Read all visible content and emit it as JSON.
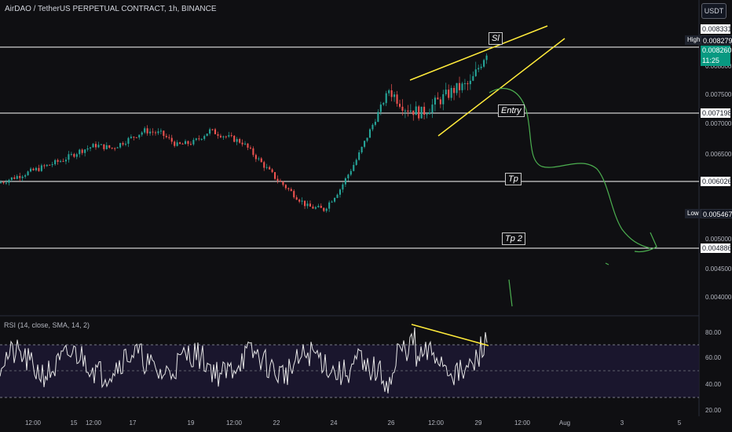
{
  "header": {
    "symbol_title": "AirDAO / TetherUS PERPETUAL CONTRACT, 1h, BINANCE",
    "currency_button": "USDT"
  },
  "price_axis": {
    "labels": [
      "0.008000",
      "0.007500",
      "0.007000",
      "0.006500",
      "0.005000",
      "0.004500",
      "0.004000"
    ]
  },
  "price_tags": {
    "top_line": "0.008331",
    "high_label": "High",
    "high_value": "0.008279",
    "current_price": "0.008260",
    "countdown": "11:25",
    "entry_line": "0.007198",
    "tp_line": "0.006026",
    "low_label": "Low",
    "low_value": "0.005467",
    "tp2_line": "0.004886"
  },
  "annotations": {
    "sl": "Sl",
    "entry": "Entry",
    "tp": "Tp",
    "tp2": "Tp 2"
  },
  "rsi": {
    "label": "RSI (14, close, SMA, 14, 2)",
    "axis_labels": [
      "80.00",
      "60.00",
      "40.00",
      "20.00"
    ]
  },
  "time_axis": {
    "labels": [
      "12:00",
      "15",
      "12:00",
      "17",
      "19",
      "12:00",
      "22",
      "24",
      "26",
      "12:00",
      "29",
      "12:00",
      "Aug",
      "3",
      "5"
    ]
  },
  "colors": {
    "background": "#0f0f12",
    "up_candle": "#26a69a",
    "down_candle": "#ef5350",
    "trendline": "#ffeb3b",
    "projection": "#4caf50",
    "horizontal_line": "#ffffff",
    "current_price_tag": "#089981"
  },
  "chart_data": {
    "type": "candlestick",
    "title": "AirDAO / TetherUS PERPETUAL CONTRACT, 1h, BINANCE",
    "price_range": [
      0.0038,
      0.0085
    ],
    "horizontal_levels": [
      0.008331,
      0.007198,
      0.006026,
      0.004886
    ],
    "high": 0.008279,
    "low": 0.005467,
    "last": 0.00826,
    "approx_close_path": [
      [
        0,
        0.006
      ],
      [
        10,
        0.0061
      ],
      [
        20,
        0.0062
      ],
      [
        30,
        0.0063
      ],
      [
        40,
        0.0064
      ],
      [
        50,
        0.00655
      ],
      [
        60,
        0.00665
      ],
      [
        70,
        0.0066
      ],
      [
        80,
        0.00675
      ],
      [
        90,
        0.0069
      ],
      [
        100,
        0.00685
      ],
      [
        110,
        0.00665
      ],
      [
        120,
        0.0067
      ],
      [
        130,
        0.0069
      ],
      [
        140,
        0.0068
      ],
      [
        150,
        0.0067
      ],
      [
        160,
        0.0064
      ],
      [
        170,
        0.0061
      ],
      [
        180,
        0.00585
      ],
      [
        190,
        0.0056
      ],
      [
        200,
        0.00555
      ],
      [
        210,
        0.0059
      ],
      [
        220,
        0.0064
      ],
      [
        230,
        0.007
      ],
      [
        240,
        0.0076
      ],
      [
        250,
        0.0073
      ],
      [
        260,
        0.0072
      ],
      [
        270,
        0.0074
      ],
      [
        280,
        0.0076
      ],
      [
        290,
        0.0077
      ],
      [
        300,
        0.00826
      ]
    ],
    "rsi_range": [
      15,
      90
    ],
    "rsi_levels": [
      70,
      50,
      30
    ]
  }
}
